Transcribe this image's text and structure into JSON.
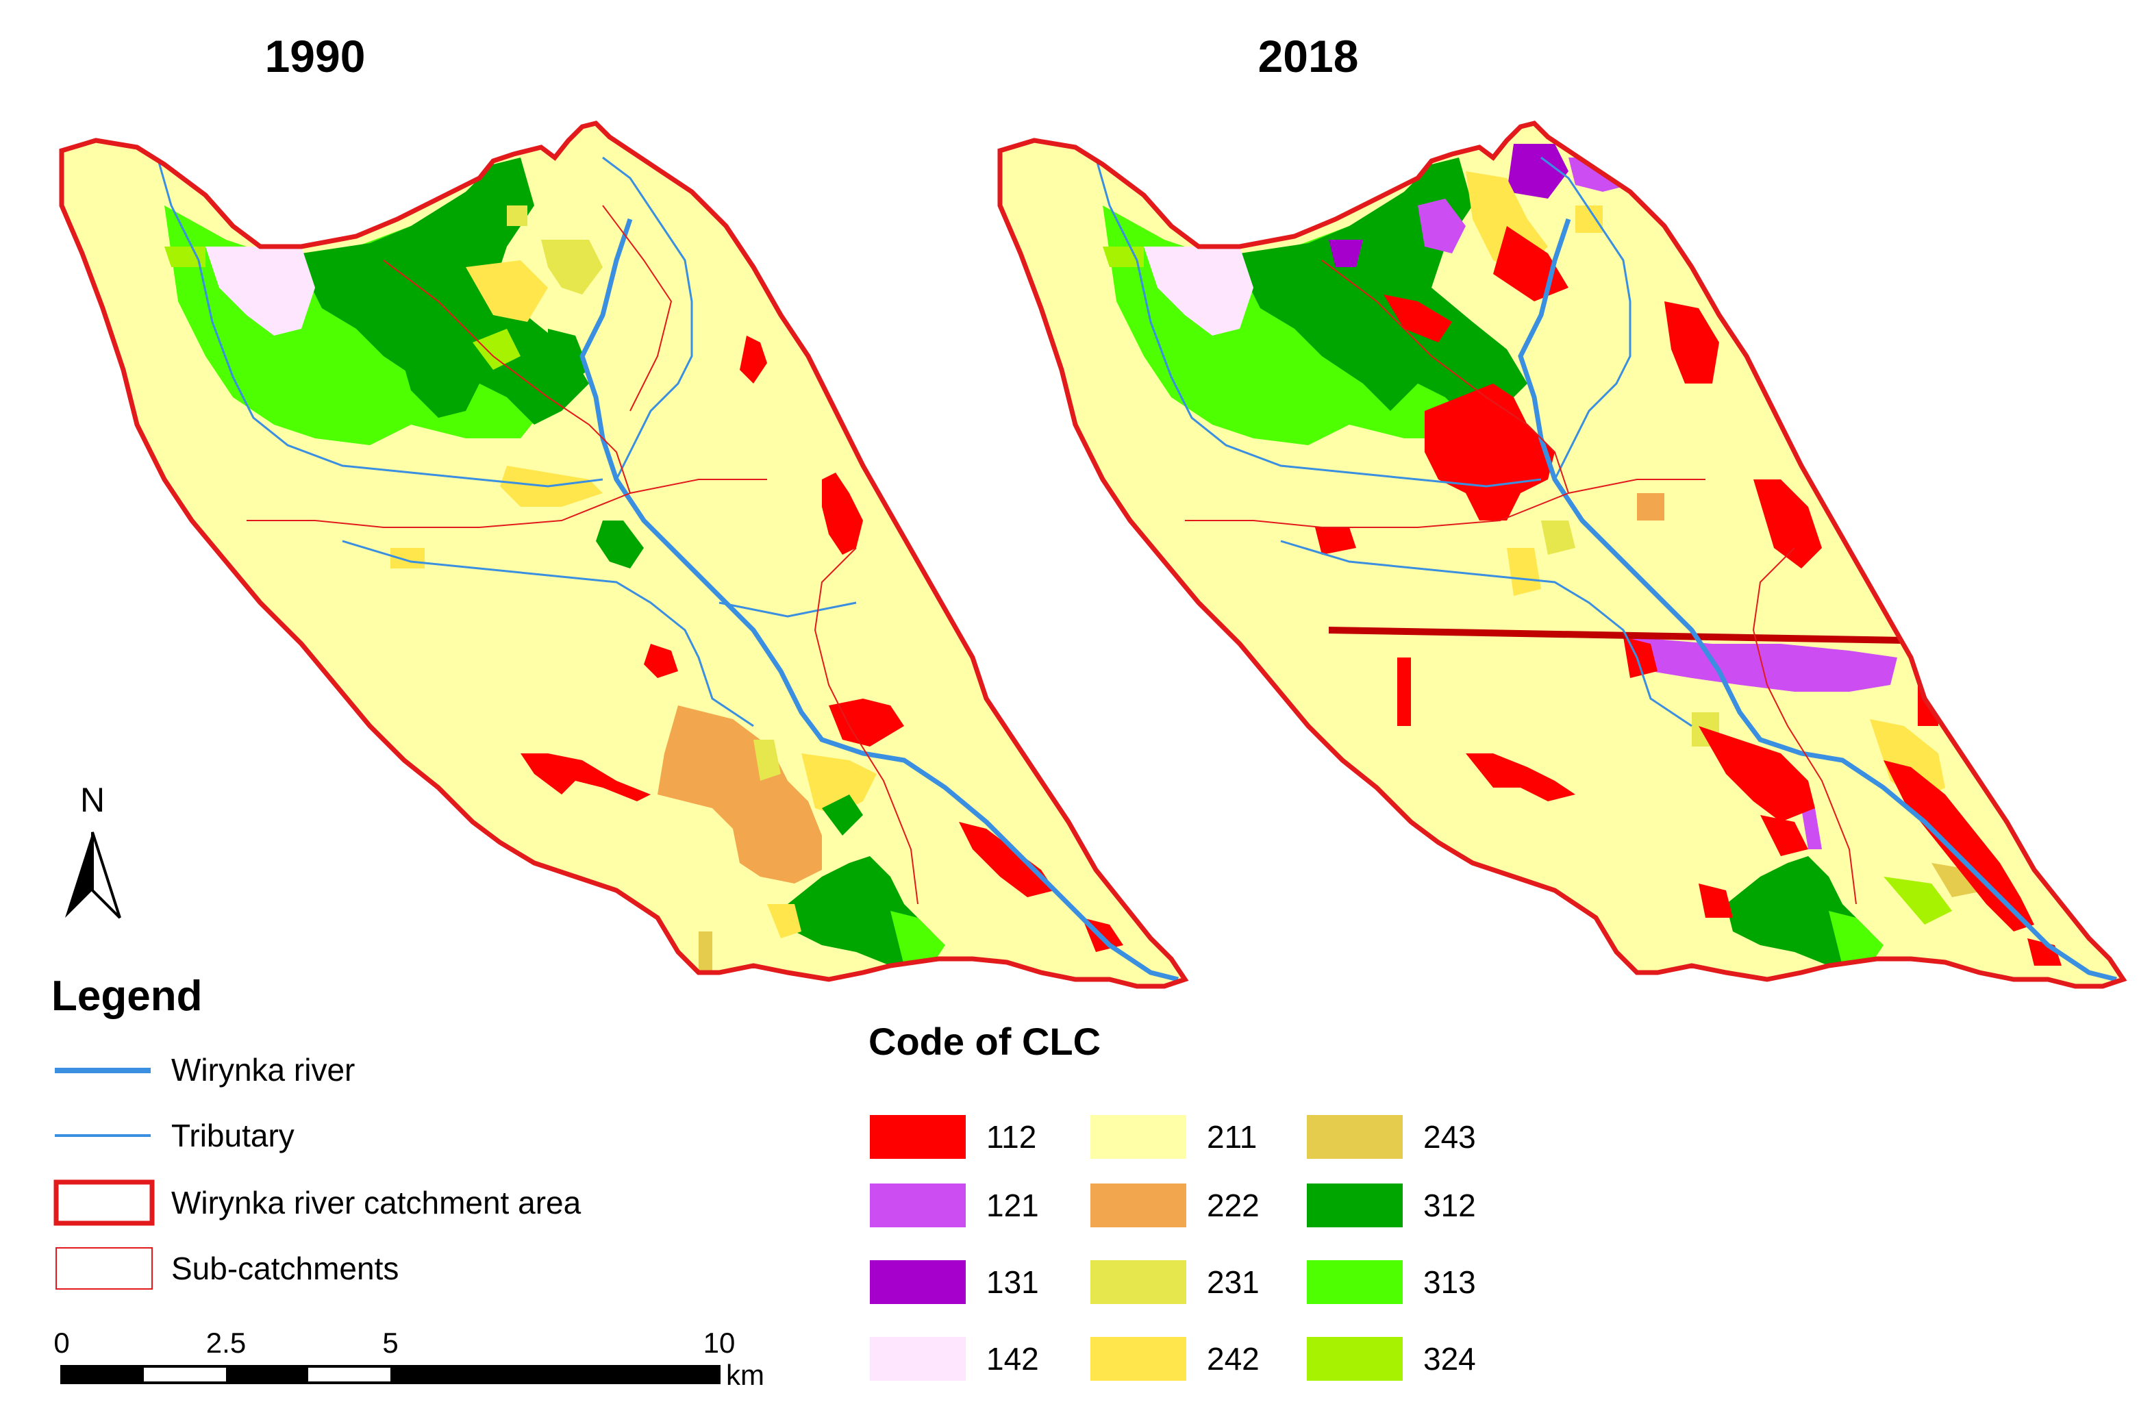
{
  "maps": [
    {
      "title": "1990"
    },
    {
      "title": "2018"
    }
  ],
  "legend": {
    "title": "Legend",
    "items": [
      {
        "label": "Wirynka river",
        "symbol": "thick-line",
        "color": "#3a8fe0"
      },
      {
        "label": "Tributary",
        "symbol": "thin-line",
        "color": "#3a8fe0"
      },
      {
        "label": "Wirynka river catchment area",
        "symbol": "thick-box",
        "color": "#e31a1c"
      },
      {
        "label": "Sub-catchments",
        "symbol": "thin-box",
        "color": "#e31a1c"
      }
    ]
  },
  "clc": {
    "title": "Code of CLC",
    "codes": [
      {
        "code": "112",
        "color": "#ff0000"
      },
      {
        "code": "121",
        "color": "#cc4df2"
      },
      {
        "code": "131",
        "color": "#a600cc"
      },
      {
        "code": "142",
        "color": "#ffe6ff"
      },
      {
        "code": "211",
        "color": "#ffffa8"
      },
      {
        "code": "222",
        "color": "#f2a64d"
      },
      {
        "code": "231",
        "color": "#e6e64d"
      },
      {
        "code": "242",
        "color": "#ffe64d"
      },
      {
        "code": "243",
        "color": "#e6cc4d"
      },
      {
        "code": "312",
        "color": "#00a600"
      },
      {
        "code": "313",
        "color": "#4dff00"
      },
      {
        "code": "324",
        "color": "#a6f200"
      }
    ]
  },
  "north_arrow": {
    "label": "N"
  },
  "scale_bar": {
    "ticks": [
      "0",
      "2.5",
      "5",
      "10"
    ],
    "unit": "km"
  },
  "colors": {
    "boundary": "#e31a1c",
    "river": "#3a8fe0",
    "base_land": "#ffffa8"
  }
}
